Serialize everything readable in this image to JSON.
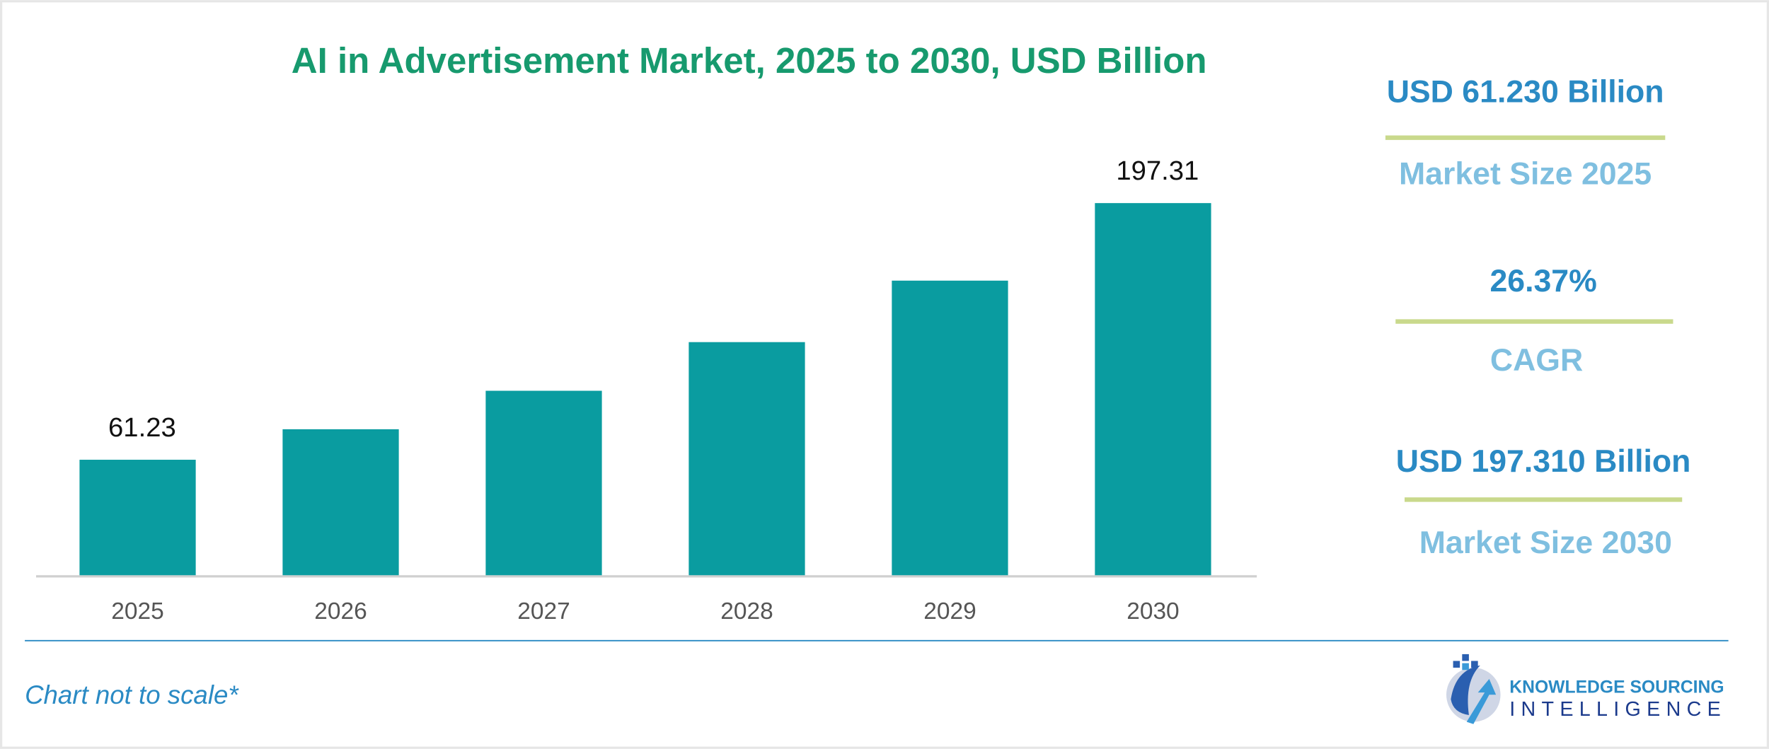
{
  "chart_data": {
    "type": "bar",
    "title": "AI in Advertisement Market, 2025 to 2030, USD Billion",
    "categories": [
      "2025",
      "2026",
      "2027",
      "2028",
      "2029",
      "2030"
    ],
    "values": [
      61.23,
      77.4,
      97.8,
      123.6,
      156.2,
      197.31
    ],
    "value_labels": [
      "61.23",
      null,
      null,
      null,
      null,
      "197.31"
    ],
    "color": "#0a9ca0"
  },
  "highlights": [
    {
      "value": "USD 61.230 Billion",
      "label": "Market Size 2025"
    },
    {
      "value": "26.37%",
      "label": "CAGR"
    },
    {
      "value": "USD 197.310 Billion",
      "label": "Market Size 2030"
    }
  ],
  "footer": {
    "note": "Chart not to scale*",
    "brand_line1": "KNOWLEDGE SOURCING",
    "brand_line2": "INTELLIGENCE"
  }
}
